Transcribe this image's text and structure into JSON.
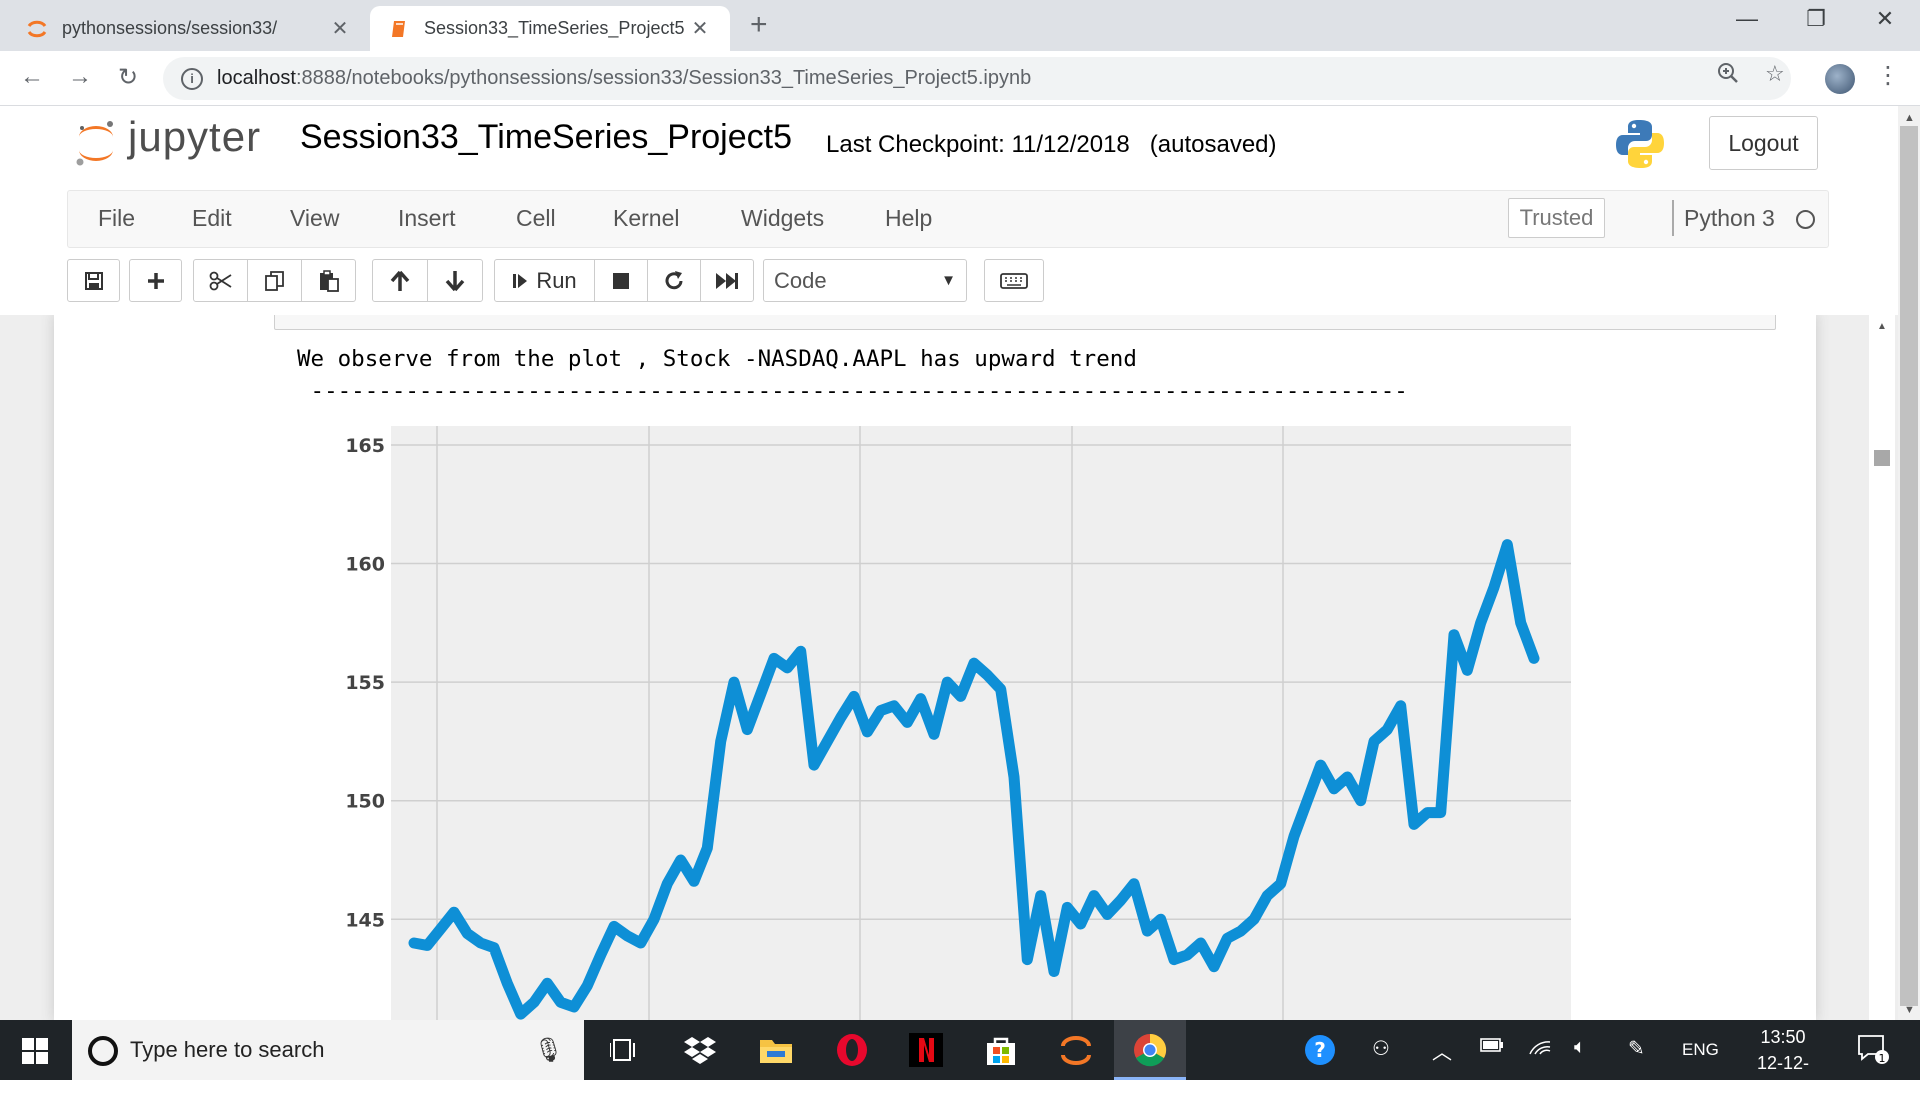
{
  "browser": {
    "tabs": [
      {
        "title": "pythonsessions/session33/",
        "active": false
      },
      {
        "title": "Session33_TimeSeries_Project5",
        "active": true
      }
    ],
    "url_host": "localhost",
    "url_path": ":8888/notebooks/pythonsessions/session33/Session33_TimeSeries_Project5.ipynb"
  },
  "jupyter": {
    "logo_text": "jupyter",
    "notebook_name": "Session33_TimeSeries_Project5",
    "checkpoint": "Last Checkpoint: 11/12/2018   (autosaved)",
    "logout_label": "Logout",
    "menus": [
      "File",
      "Edit",
      "View",
      "Insert",
      "Cell",
      "Kernel",
      "Widgets",
      "Help"
    ],
    "trusted_label": "Trusted",
    "kernel_name": "Python 3",
    "run_label": "Run",
    "cell_type": "Code"
  },
  "output": {
    "line1": "We observe from the plot , Stock -NASDAQ.AAPL has upward trend",
    "line2": " ---------------------------------------------------------------------------------"
  },
  "chart_data": {
    "type": "line",
    "title": "",
    "xlabel": "",
    "ylabel": "",
    "ylim": [
      140.5,
      165.8
    ],
    "yticks": [
      145,
      150,
      155,
      160,
      165
    ],
    "grid": true,
    "line_color": "#0e8fd6",
    "series": [
      {
        "x": [
          0,
          5,
          10,
          15,
          20,
          25,
          30,
          35,
          40,
          45,
          50,
          55,
          60,
          65,
          70,
          75,
          80,
          85,
          90,
          95,
          100,
          105,
          110,
          115,
          120,
          125,
          130,
          135,
          140,
          145,
          150,
          155,
          160,
          165,
          170,
          175,
          180,
          185,
          190,
          195,
          200,
          205,
          210,
          215,
          220,
          225,
          230,
          235,
          240,
          245,
          250,
          255,
          260,
          265,
          270,
          275,
          280,
          285,
          290,
          295,
          300,
          305,
          310,
          315,
          320,
          325,
          330,
          335,
          340,
          345,
          350,
          355,
          360,
          365,
          370,
          375,
          380,
          385,
          390,
          395,
          400,
          405,
          410,
          415,
          420
        ],
        "values": [
          144.0,
          143.9,
          144.6,
          145.3,
          144.4,
          144.0,
          143.8,
          142.3,
          141.0,
          141.5,
          142.3,
          141.5,
          141.3,
          142.2,
          143.5,
          144.7,
          144.3,
          144.0,
          145.0,
          146.5,
          147.5,
          146.6,
          148.0,
          152.5,
          155.0,
          153.0,
          154.5,
          156.0,
          155.6,
          156.3,
          151.5,
          152.5,
          153.5,
          154.4,
          152.9,
          153.8,
          154.0,
          153.3,
          154.3,
          152.8,
          155.0,
          154.4,
          155.8,
          155.3,
          154.7,
          151.0,
          143.3,
          146.0,
          142.8,
          145.5,
          144.8,
          146.0,
          145.2,
          145.8,
          146.5,
          144.5,
          145.0,
          143.3,
          143.5,
          144.0,
          143.0,
          144.2,
          144.5,
          145.0,
          146.0,
          146.5,
          148.5,
          150.0,
          151.5,
          150.5,
          151.0,
          150.0,
          152.5,
          153.0,
          154.0,
          149.0,
          149.5,
          149.5,
          157.0,
          155.5,
          157.5,
          159.0,
          160.8,
          157.5,
          156.0
        ]
      }
    ]
  }
}
